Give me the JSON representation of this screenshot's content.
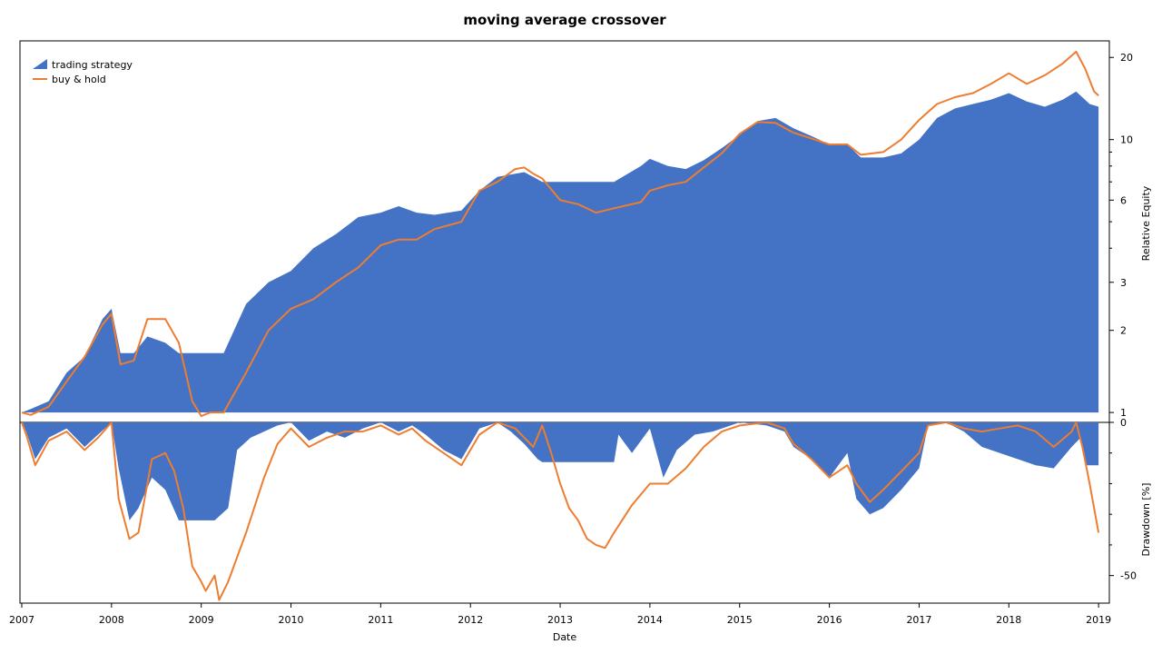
{
  "chart_data": [
    {
      "type": "area",
      "panel": "equity",
      "title": "moving average crossover",
      "xlabel": "",
      "ylabel": "Relative Equity",
      "yscale": "log",
      "ylim": [
        0.92,
        23
      ],
      "xlim": [
        2006.98,
        2019.12
      ],
      "yticks": [
        1,
        2,
        3,
        6,
        10,
        20
      ],
      "ytick_labels": [
        "1",
        "2",
        "3",
        "6",
        "10",
        "20"
      ],
      "legend_placement": "top-left",
      "grid": false,
      "colors": {
        "strategy": "#4472c4",
        "buy_hold": "#ed7d31"
      },
      "series": [
        {
          "name": "trading strategy",
          "style": "area",
          "x": [
            2007.0,
            2007.1,
            2007.3,
            2007.5,
            2007.7,
            2007.9,
            2008.0,
            2008.1,
            2008.25,
            2008.4,
            2008.6,
            2008.75,
            2009.1,
            2009.25,
            2009.5,
            2009.75,
            2010.0,
            2010.25,
            2010.5,
            2010.75,
            2011.0,
            2011.2,
            2011.4,
            2011.6,
            2011.9,
            2012.1,
            2012.3,
            2012.5,
            2012.6,
            2012.7,
            2012.8,
            2013.0,
            2013.2,
            2013.4,
            2013.6,
            2013.9,
            2014.0,
            2014.2,
            2014.4,
            2014.6,
            2014.8,
            2015.0,
            2015.2,
            2015.4,
            2015.6,
            2015.8,
            2016.0,
            2016.2,
            2016.35,
            2016.6,
            2016.8,
            2017.0,
            2017.2,
            2017.4,
            2017.6,
            2017.8,
            2018.0,
            2018.2,
            2018.4,
            2018.6,
            2018.75,
            2018.9,
            2019.0
          ],
          "values": [
            1.0,
            1.03,
            1.1,
            1.4,
            1.6,
            2.2,
            2.4,
            1.65,
            1.65,
            1.9,
            1.8,
            1.65,
            1.65,
            1.65,
            2.5,
            3.0,
            3.3,
            4.0,
            4.5,
            5.2,
            5.4,
            5.7,
            5.4,
            5.3,
            5.5,
            6.5,
            7.3,
            7.5,
            7.6,
            7.3,
            7.0,
            7.0,
            7.0,
            7.0,
            7.0,
            8.0,
            8.5,
            8.0,
            7.8,
            8.4,
            9.3,
            10.4,
            11.7,
            12.0,
            11.0,
            10.3,
            9.6,
            9.6,
            8.6,
            8.6,
            8.9,
            10.0,
            12.0,
            13.0,
            13.5,
            14.0,
            14.8,
            13.8,
            13.2,
            14.0,
            15.0,
            13.5,
            13.2
          ]
        },
        {
          "name": "buy & hold",
          "style": "line",
          "x": [
            2007.0,
            2007.1,
            2007.3,
            2007.5,
            2007.7,
            2007.9,
            2008.0,
            2008.1,
            2008.25,
            2008.4,
            2008.6,
            2008.75,
            2008.9,
            2009.0,
            2009.1,
            2009.25,
            2009.5,
            2009.75,
            2010.0,
            2010.25,
            2010.5,
            2010.75,
            2011.0,
            2011.2,
            2011.4,
            2011.6,
            2011.9,
            2012.1,
            2012.3,
            2012.5,
            2012.6,
            2012.7,
            2012.8,
            2013.0,
            2013.2,
            2013.4,
            2013.6,
            2013.9,
            2014.0,
            2014.2,
            2014.4,
            2014.6,
            2014.8,
            2015.0,
            2015.2,
            2015.4,
            2015.6,
            2015.8,
            2016.0,
            2016.2,
            2016.35,
            2016.6,
            2016.8,
            2017.0,
            2017.2,
            2017.4,
            2017.6,
            2017.8,
            2018.0,
            2018.2,
            2018.4,
            2018.6,
            2018.75,
            2018.85,
            2018.95,
            2019.0
          ],
          "values": [
            1.0,
            0.98,
            1.05,
            1.3,
            1.6,
            2.1,
            2.3,
            1.5,
            1.55,
            2.2,
            2.2,
            1.8,
            1.1,
            0.97,
            1.0,
            1.0,
            1.4,
            2.0,
            2.4,
            2.6,
            3.0,
            3.4,
            4.1,
            4.3,
            4.3,
            4.7,
            5.0,
            6.5,
            7.0,
            7.8,
            7.9,
            7.5,
            7.2,
            6.0,
            5.8,
            5.4,
            5.6,
            5.9,
            6.5,
            6.8,
            7.0,
            7.9,
            8.9,
            10.5,
            11.6,
            11.5,
            10.6,
            10.1,
            9.6,
            9.6,
            8.8,
            9.0,
            10.0,
            11.8,
            13.5,
            14.3,
            14.8,
            16.0,
            17.5,
            16.0,
            17.2,
            19.0,
            21.0,
            18.2,
            15.0,
            14.5
          ]
        }
      ]
    },
    {
      "type": "area",
      "panel": "drawdown",
      "xlabel": "Date",
      "ylabel": "Drawdown [%]",
      "ylim": [
        -59,
        0
      ],
      "xlim": [
        2006.98,
        2019.12
      ],
      "yticks": [
        0,
        -50
      ],
      "ytick_labels": [
        "0",
        "-50"
      ],
      "xticks": [
        2007,
        2008,
        2009,
        2010,
        2011,
        2012,
        2013,
        2014,
        2015,
        2016,
        2017,
        2018,
        2019
      ],
      "xtick_labels": [
        "2007",
        "2008",
        "2009",
        "2010",
        "2011",
        "2012",
        "2013",
        "2014",
        "2015",
        "2016",
        "2017",
        "2018",
        "2019"
      ],
      "series": [
        {
          "name": "trading strategy",
          "style": "area",
          "x": [
            2007.0,
            2007.05,
            2007.15,
            2007.3,
            2007.5,
            2007.7,
            2007.85,
            2008.0,
            2008.08,
            2008.2,
            2008.3,
            2008.45,
            2008.6,
            2008.75,
            2009.0,
            2009.15,
            2009.3,
            2009.4,
            2009.55,
            2009.7,
            2009.85,
            2010.0,
            2010.2,
            2010.4,
            2010.6,
            2010.8,
            2011.0,
            2011.2,
            2011.35,
            2011.5,
            2011.7,
            2011.9,
            2012.1,
            2012.3,
            2012.45,
            2012.6,
            2012.75,
            2012.8,
            2013.0,
            2013.3,
            2013.6,
            2013.65,
            2013.8,
            2014.0,
            2014.15,
            2014.3,
            2014.5,
            2014.7,
            2014.9,
            2015.0,
            2015.3,
            2015.5,
            2015.6,
            2015.8,
            2016.0,
            2016.2,
            2016.3,
            2016.45,
            2016.6,
            2016.8,
            2017.0,
            2017.1,
            2017.3,
            2017.5,
            2017.7,
            2017.9,
            2018.1,
            2018.3,
            2018.5,
            2018.7,
            2018.8,
            2018.87,
            2019.0
          ],
          "values": [
            0,
            -3,
            -12,
            -5,
            -2,
            -8,
            -4,
            0,
            -15,
            -32,
            -28,
            -18,
            -22,
            -32,
            -32,
            -32,
            -28,
            -9,
            -5,
            -3,
            -1,
            0,
            -6,
            -3,
            -5,
            -2,
            0,
            -3,
            -1,
            -4,
            -9,
            -12,
            -2,
            0,
            -3,
            -7,
            -12,
            -13,
            -13,
            -13,
            -13,
            -4,
            -10,
            -2,
            -18,
            -9,
            -4,
            -3,
            -1,
            0,
            -1,
            -3,
            -8,
            -12,
            -18,
            -10,
            -25,
            -30,
            -28,
            -22,
            -15,
            -1,
            0,
            -3,
            -8,
            -10,
            -12,
            -14,
            -15,
            -8,
            -5,
            -14,
            -14
          ]
        },
        {
          "name": "buy & hold",
          "style": "line",
          "x": [
            2007.0,
            2007.05,
            2007.15,
            2007.3,
            2007.5,
            2007.7,
            2007.85,
            2008.0,
            2008.08,
            2008.2,
            2008.3,
            2008.45,
            2008.6,
            2008.7,
            2008.8,
            2008.9,
            2009.0,
            2009.05,
            2009.15,
            2009.2,
            2009.3,
            2009.5,
            2009.7,
            2009.85,
            2010.0,
            2010.2,
            2010.4,
            2010.6,
            2010.8,
            2011.0,
            2011.2,
            2011.35,
            2011.5,
            2011.7,
            2011.9,
            2012.1,
            2012.3,
            2012.5,
            2012.7,
            2012.8,
            2012.9,
            2013.0,
            2013.1,
            2013.2,
            2013.3,
            2013.4,
            2013.5,
            2013.6,
            2013.8,
            2014.0,
            2014.2,
            2014.4,
            2014.6,
            2014.8,
            2015.0,
            2015.3,
            2015.5,
            2015.6,
            2015.8,
            2016.0,
            2016.2,
            2016.3,
            2016.45,
            2016.6,
            2016.8,
            2017.0,
            2017.1,
            2017.3,
            2017.5,
            2017.7,
            2017.9,
            2018.1,
            2018.3,
            2018.5,
            2018.7,
            2018.75,
            2018.82,
            2018.9,
            2018.95,
            2019.0
          ],
          "values": [
            0,
            -4,
            -14,
            -6,
            -3,
            -9,
            -5,
            0,
            -25,
            -38,
            -36,
            -12,
            -10,
            -16,
            -28,
            -47,
            -52,
            -55,
            -50,
            -58,
            -52,
            -36,
            -18,
            -7,
            -2,
            -8,
            -5,
            -3,
            -3,
            -1,
            -4,
            -2,
            -6,
            -10,
            -14,
            -4,
            0,
            -2,
            -8,
            -1,
            -10,
            -20,
            -28,
            -32,
            -38,
            -40,
            -41,
            -36,
            -27,
            -20,
            -20,
            -15,
            -8,
            -3,
            -1,
            0,
            -2,
            -7,
            -12,
            -18,
            -14,
            -20,
            -26,
            -22,
            -16,
            -10,
            -1,
            0,
            -2,
            -3,
            -2,
            -1,
            -3,
            -8,
            -3,
            0,
            -8,
            -20,
            -28,
            -36
          ]
        }
      ]
    }
  ]
}
